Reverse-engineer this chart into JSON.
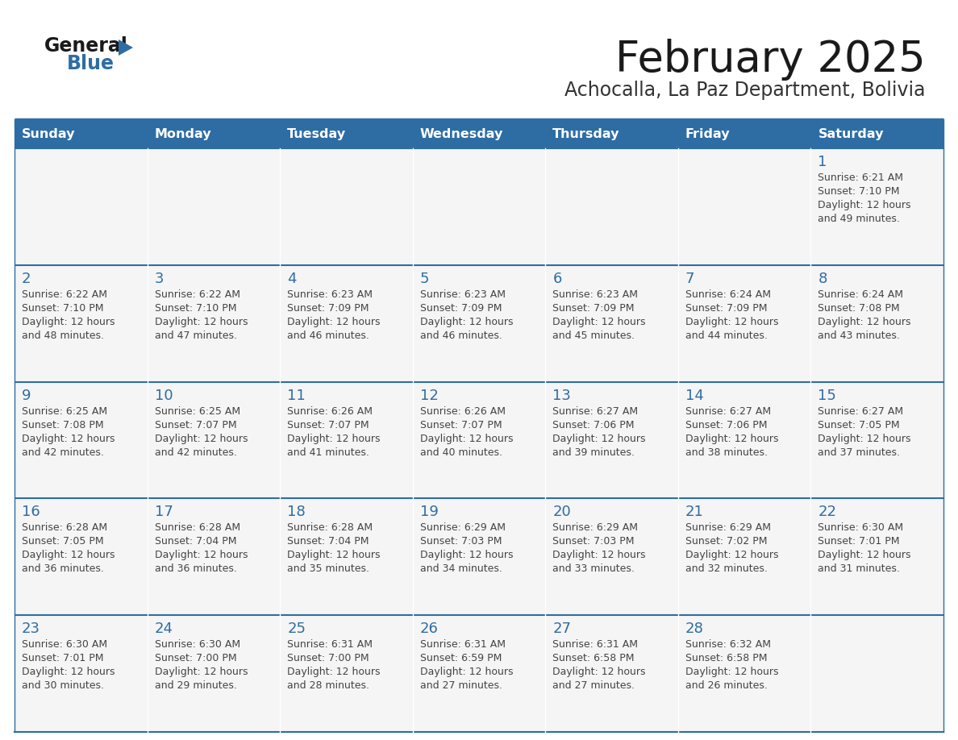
{
  "title": "February 2025",
  "subtitle": "Achocalla, La Paz Department, Bolivia",
  "days_of_week": [
    "Sunday",
    "Monday",
    "Tuesday",
    "Wednesday",
    "Thursday",
    "Friday",
    "Saturday"
  ],
  "header_bg": "#2e6da4",
  "header_text": "#ffffff",
  "row_bg": "#f5f5f5",
  "cell_border_color": "#2e6da4",
  "cell_border_top": "#4a86c0",
  "day_number_color": "#2e6da4",
  "text_color": "#444444",
  "logo_general_color": "#1a1a1a",
  "logo_blue_color": "#2e6da4",
  "calendar_data": [
    [
      null,
      null,
      null,
      null,
      null,
      null,
      {
        "day": 1,
        "sunrise": "6:21 AM",
        "sunset": "7:10 PM",
        "daylight_hours": 12,
        "daylight_minutes": 49
      }
    ],
    [
      {
        "day": 2,
        "sunrise": "6:22 AM",
        "sunset": "7:10 PM",
        "daylight_hours": 12,
        "daylight_minutes": 48
      },
      {
        "day": 3,
        "sunrise": "6:22 AM",
        "sunset": "7:10 PM",
        "daylight_hours": 12,
        "daylight_minutes": 47
      },
      {
        "day": 4,
        "sunrise": "6:23 AM",
        "sunset": "7:09 PM",
        "daylight_hours": 12,
        "daylight_minutes": 46
      },
      {
        "day": 5,
        "sunrise": "6:23 AM",
        "sunset": "7:09 PM",
        "daylight_hours": 12,
        "daylight_minutes": 46
      },
      {
        "day": 6,
        "sunrise": "6:23 AM",
        "sunset": "7:09 PM",
        "daylight_hours": 12,
        "daylight_minutes": 45
      },
      {
        "day": 7,
        "sunrise": "6:24 AM",
        "sunset": "7:09 PM",
        "daylight_hours": 12,
        "daylight_minutes": 44
      },
      {
        "day": 8,
        "sunrise": "6:24 AM",
        "sunset": "7:08 PM",
        "daylight_hours": 12,
        "daylight_minutes": 43
      }
    ],
    [
      {
        "day": 9,
        "sunrise": "6:25 AM",
        "sunset": "7:08 PM",
        "daylight_hours": 12,
        "daylight_minutes": 42
      },
      {
        "day": 10,
        "sunrise": "6:25 AM",
        "sunset": "7:07 PM",
        "daylight_hours": 12,
        "daylight_minutes": 42
      },
      {
        "day": 11,
        "sunrise": "6:26 AM",
        "sunset": "7:07 PM",
        "daylight_hours": 12,
        "daylight_minutes": 41
      },
      {
        "day": 12,
        "sunrise": "6:26 AM",
        "sunset": "7:07 PM",
        "daylight_hours": 12,
        "daylight_minutes": 40
      },
      {
        "day": 13,
        "sunrise": "6:27 AM",
        "sunset": "7:06 PM",
        "daylight_hours": 12,
        "daylight_minutes": 39
      },
      {
        "day": 14,
        "sunrise": "6:27 AM",
        "sunset": "7:06 PM",
        "daylight_hours": 12,
        "daylight_minutes": 38
      },
      {
        "day": 15,
        "sunrise": "6:27 AM",
        "sunset": "7:05 PM",
        "daylight_hours": 12,
        "daylight_minutes": 37
      }
    ],
    [
      {
        "day": 16,
        "sunrise": "6:28 AM",
        "sunset": "7:05 PM",
        "daylight_hours": 12,
        "daylight_minutes": 36
      },
      {
        "day": 17,
        "sunrise": "6:28 AM",
        "sunset": "7:04 PM",
        "daylight_hours": 12,
        "daylight_minutes": 36
      },
      {
        "day": 18,
        "sunrise": "6:28 AM",
        "sunset": "7:04 PM",
        "daylight_hours": 12,
        "daylight_minutes": 35
      },
      {
        "day": 19,
        "sunrise": "6:29 AM",
        "sunset": "7:03 PM",
        "daylight_hours": 12,
        "daylight_minutes": 34
      },
      {
        "day": 20,
        "sunrise": "6:29 AM",
        "sunset": "7:03 PM",
        "daylight_hours": 12,
        "daylight_minutes": 33
      },
      {
        "day": 21,
        "sunrise": "6:29 AM",
        "sunset": "7:02 PM",
        "daylight_hours": 12,
        "daylight_minutes": 32
      },
      {
        "day": 22,
        "sunrise": "6:30 AM",
        "sunset": "7:01 PM",
        "daylight_hours": 12,
        "daylight_minutes": 31
      }
    ],
    [
      {
        "day": 23,
        "sunrise": "6:30 AM",
        "sunset": "7:01 PM",
        "daylight_hours": 12,
        "daylight_minutes": 30
      },
      {
        "day": 24,
        "sunrise": "6:30 AM",
        "sunset": "7:00 PM",
        "daylight_hours": 12,
        "daylight_minutes": 29
      },
      {
        "day": 25,
        "sunrise": "6:31 AM",
        "sunset": "7:00 PM",
        "daylight_hours": 12,
        "daylight_minutes": 28
      },
      {
        "day": 26,
        "sunrise": "6:31 AM",
        "sunset": "6:59 PM",
        "daylight_hours": 12,
        "daylight_minutes": 27
      },
      {
        "day": 27,
        "sunrise": "6:31 AM",
        "sunset": "6:58 PM",
        "daylight_hours": 12,
        "daylight_minutes": 27
      },
      {
        "day": 28,
        "sunrise": "6:32 AM",
        "sunset": "6:58 PM",
        "daylight_hours": 12,
        "daylight_minutes": 26
      },
      null
    ]
  ]
}
